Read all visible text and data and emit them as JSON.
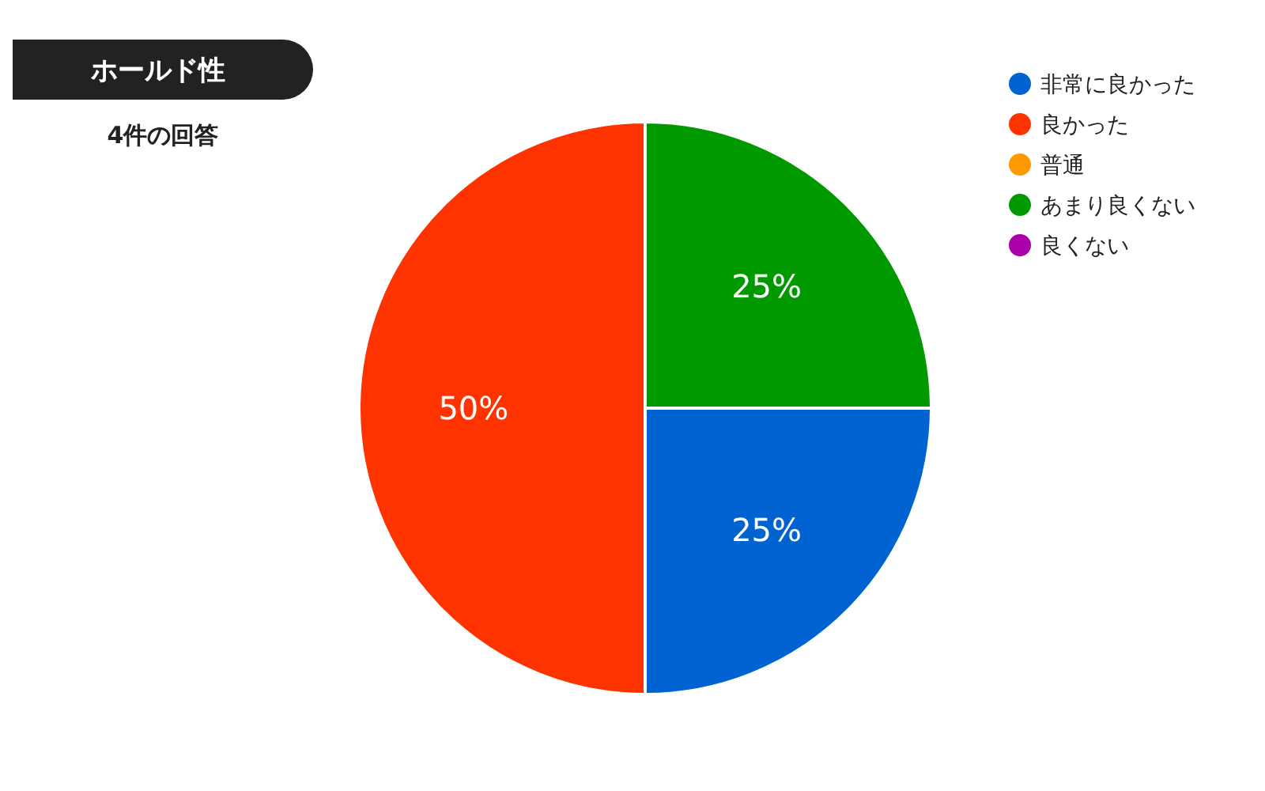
{
  "chart_data": {
    "type": "pie",
    "title": "ホールド性",
    "subtitle": "4件の回答",
    "categories": [
      "非常に良かった",
      "良かった",
      "普通",
      "あまり良くない",
      "良くない"
    ],
    "values": [
      25,
      50,
      0,
      25,
      0
    ],
    "colors": [
      "#0063d1",
      "#ff3300",
      "#ff9900",
      "#009900",
      "#aa00aa"
    ],
    "value_labels": [
      "25%",
      "50%",
      null,
      "25%",
      null
    ],
    "legend": "top right"
  }
}
